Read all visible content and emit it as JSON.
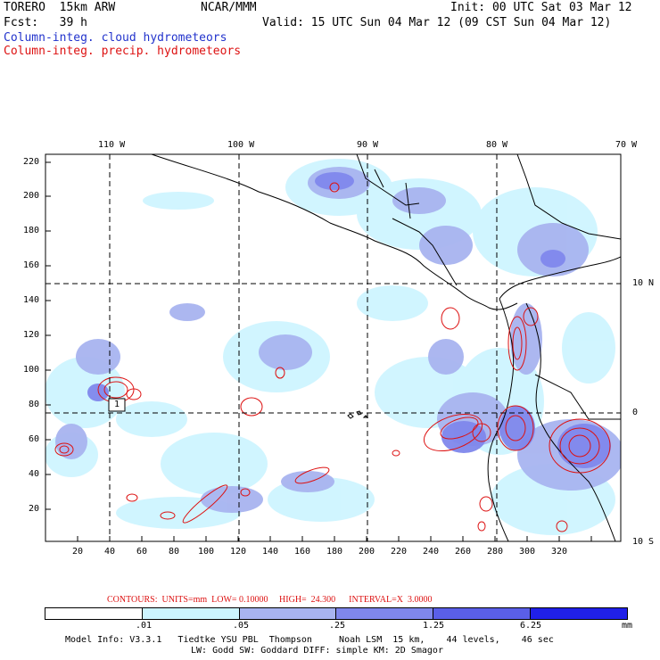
{
  "header": {
    "model": "TORERO  15km ARW",
    "org": "NCAR/MMM",
    "init": "Init: 00 UTC Sat 03 Mar 12",
    "fcst": "Fcst:   39 h",
    "valid": "Valid: 15 UTC Sun 04 Mar 12 (09 CST Sun 04 Mar 12)",
    "field1": "Column-integ. cloud hydrometeors",
    "field2": "Column-integ. precip. hydrometeors"
  },
  "colors": {
    "cloud": "#2233cc",
    "precip": "#dd1111",
    "shade": [
      "#ffffff",
      "#ccf4ff",
      "#a8b4f0",
      "#7f87ec",
      "#5a5fe8",
      "#2020e8"
    ]
  },
  "axes": {
    "lon_labels": [
      "110 W",
      "100 W",
      "90 W",
      "80 W",
      "70 W"
    ],
    "lat_labels": [
      "10 N",
      "0",
      "10 S"
    ],
    "x_ticks": [
      "20",
      "40",
      "60",
      "80",
      "100",
      "120",
      "140",
      "160",
      "180",
      "200",
      "220",
      "240",
      "260",
      "280",
      "300",
      "320"
    ],
    "y_ticks": [
      "220",
      "200",
      "180",
      "160",
      "140",
      "120",
      "100",
      "80",
      "60",
      "40",
      "20"
    ]
  },
  "contour_info": "CONTOURS:  UNITS=mm  LOW= 0.10000     HIGH=  24.300      INTERVAL=X  3.0000",
  "colorbar": {
    "levels": [
      ".01",
      ".05",
      ".25",
      "1.25",
      "6.25"
    ],
    "unit": "mm"
  },
  "marker": "1",
  "footer": {
    "line1": "Model Info: V3.3.1   Tiedtke YSU PBL  Thompson     Noah LSM  15 km,    44 levels,    46 sec",
    "line2": "LW: Godd SW: Goddard DIFF: simple KM: 2D Smagor"
  }
}
